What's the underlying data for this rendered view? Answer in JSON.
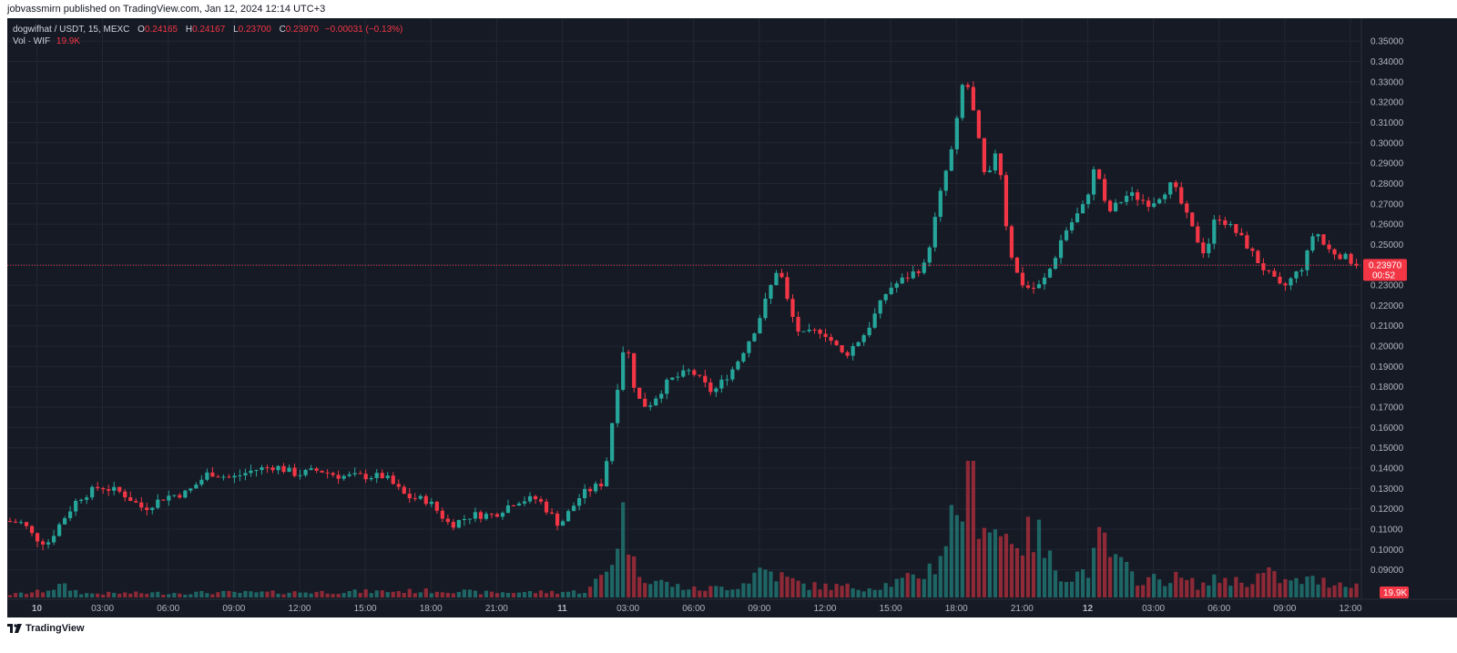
{
  "header": {
    "published_text": "jobvassmirn published on TradingView.com, Jan 12, 2024 12:14 UTC+3"
  },
  "legend": {
    "symbol": "dogwifhat / USDT, 15, MEXC",
    "o_label": "O",
    "o_value": "0.24165",
    "h_label": "H",
    "h_value": "0.24167",
    "l_label": "L",
    "l_value": "0.23700",
    "c_label": "C",
    "c_value": "0.23970",
    "change": "−0.00031 (−0.13%)",
    "vol_label": "Vol · WIF",
    "vol_value": "19.9K"
  },
  "footer": {
    "brand": "TradingView",
    "logo_icon": "tradingview-logo-icon"
  },
  "colors": {
    "up": "#26a69a",
    "down": "#f23645",
    "background": "#161a25",
    "grid": "#232734",
    "text": "#b2b5be"
  },
  "chart_data": {
    "type": "candlestick",
    "title": "",
    "symbol": "dogwifhat / USDT",
    "interval": "15",
    "exchange": "MEXC",
    "last_price": "0.23970",
    "countdown": "00:52",
    "volume_last": "19.9K",
    "ylim": [
      0.08,
      0.355
    ],
    "y_ticks": [
      "0.35000",
      "0.34000",
      "0.33000",
      "0.32000",
      "0.31000",
      "0.30000",
      "0.29000",
      "0.28000",
      "0.27000",
      "0.26000",
      "0.25000",
      "0.24000",
      "0.23000",
      "0.22000",
      "0.21000",
      "0.20000",
      "0.19000",
      "0.18000",
      "0.17000",
      "0.16000",
      "0.15000",
      "0.14000",
      "0.13000",
      "0.12000",
      "0.11000",
      "0.10000",
      "0.09000"
    ],
    "x_ticks": [
      {
        "label": "10",
        "hour": 0,
        "bold": true
      },
      {
        "label": "03:00",
        "hour": 3
      },
      {
        "label": "06:00",
        "hour": 6
      },
      {
        "label": "09:00",
        "hour": 9
      },
      {
        "label": "12:00",
        "hour": 12
      },
      {
        "label": "15:00",
        "hour": 15
      },
      {
        "label": "18:00",
        "hour": 18
      },
      {
        "label": "21:00",
        "hour": 21
      },
      {
        "label": "11",
        "hour": 24,
        "bold": true
      },
      {
        "label": "03:00",
        "hour": 27
      },
      {
        "label": "06:00",
        "hour": 30
      },
      {
        "label": "09:00",
        "hour": 33
      },
      {
        "label": "12:00",
        "hour": 36
      },
      {
        "label": "15:00",
        "hour": 39
      },
      {
        "label": "18:00",
        "hour": 42
      },
      {
        "label": "21:00",
        "hour": 45
      },
      {
        "label": "12",
        "hour": 48,
        "bold": true
      },
      {
        "label": "03:00",
        "hour": 51
      },
      {
        "label": "06:00",
        "hour": 54
      },
      {
        "label": "09:00",
        "hour": 57
      },
      {
        "label": "12:00",
        "hour": 60
      }
    ],
    "x_range_hours": [
      -1.35,
      60.5
    ],
    "price_anchors": [
      [
        -1.35,
        0.114
      ],
      [
        -0.5,
        0.113
      ],
      [
        0,
        0.106
      ],
      [
        0.6,
        0.103
      ],
      [
        1.2,
        0.113
      ],
      [
        2,
        0.125
      ],
      [
        3,
        0.131
      ],
      [
        4,
        0.128
      ],
      [
        5,
        0.12
      ],
      [
        6,
        0.126
      ],
      [
        7,
        0.128
      ],
      [
        8,
        0.138
      ],
      [
        9,
        0.135
      ],
      [
        10,
        0.139
      ],
      [
        11,
        0.141
      ],
      [
        12,
        0.137
      ],
      [
        13,
        0.139
      ],
      [
        14,
        0.136
      ],
      [
        15,
        0.136
      ],
      [
        16,
        0.136
      ],
      [
        17,
        0.126
      ],
      [
        18,
        0.124
      ],
      [
        19,
        0.112
      ],
      [
        20,
        0.117
      ],
      [
        21,
        0.117
      ],
      [
        22,
        0.124
      ],
      [
        23,
        0.125
      ],
      [
        24,
        0.112
      ],
      [
        25,
        0.127
      ],
      [
        26,
        0.133
      ],
      [
        26.5,
        0.17
      ],
      [
        27,
        0.205
      ],
      [
        27.5,
        0.175
      ],
      [
        28,
        0.17
      ],
      [
        29,
        0.183
      ],
      [
        30,
        0.188
      ],
      [
        31,
        0.177
      ],
      [
        32,
        0.19
      ],
      [
        33,
        0.21
      ],
      [
        34,
        0.24
      ],
      [
        34.5,
        0.218
      ],
      [
        35,
        0.205
      ],
      [
        36,
        0.208
      ],
      [
        37,
        0.195
      ],
      [
        38,
        0.207
      ],
      [
        39,
        0.228
      ],
      [
        40,
        0.235
      ],
      [
        40.7,
        0.24
      ],
      [
        41,
        0.255
      ],
      [
        41.5,
        0.28
      ],
      [
        42,
        0.3
      ],
      [
        42.5,
        0.335
      ],
      [
        43,
        0.31
      ],
      [
        43.5,
        0.278
      ],
      [
        44,
        0.3
      ],
      [
        44.5,
        0.25
      ],
      [
        45,
        0.232
      ],
      [
        45.5,
        0.228
      ],
      [
        46,
        0.23
      ],
      [
        46.5,
        0.24
      ],
      [
        47,
        0.255
      ],
      [
        48,
        0.27
      ],
      [
        48.5,
        0.29
      ],
      [
        49,
        0.265
      ],
      [
        50,
        0.275
      ],
      [
        51,
        0.27
      ],
      [
        52,
        0.28
      ],
      [
        53,
        0.255
      ],
      [
        53.5,
        0.245
      ],
      [
        54,
        0.265
      ],
      [
        55,
        0.255
      ],
      [
        55.5,
        0.248
      ],
      [
        56,
        0.24
      ],
      [
        57,
        0.228
      ],
      [
        58,
        0.24
      ],
      [
        58.5,
        0.258
      ],
      [
        59,
        0.248
      ],
      [
        60,
        0.243
      ],
      [
        60.5,
        0.2397
      ]
    ],
    "volume_anchors": [
      [
        -1.35,
        3
      ],
      [
        0,
        6
      ],
      [
        1,
        12
      ],
      [
        2,
        4
      ],
      [
        8,
        5
      ],
      [
        10,
        5
      ],
      [
        19,
        7
      ],
      [
        20,
        5
      ],
      [
        25,
        6
      ],
      [
        26,
        30
      ],
      [
        26.8,
        95
      ],
      [
        27,
        35
      ],
      [
        28,
        18
      ],
      [
        29,
        12
      ],
      [
        30,
        8
      ],
      [
        32,
        12
      ],
      [
        33,
        30
      ],
      [
        34,
        20
      ],
      [
        35,
        12
      ],
      [
        38,
        10
      ],
      [
        40,
        20
      ],
      [
        41,
        35
      ],
      [
        41.5,
        70
      ],
      [
        42,
        95
      ],
      [
        42.5,
        130
      ],
      [
        43,
        90
      ],
      [
        44,
        60
      ],
      [
        44.5,
        70
      ],
      [
        45,
        55
      ],
      [
        45.5,
        70
      ],
      [
        46,
        40
      ],
      [
        47,
        20
      ],
      [
        48,
        30
      ],
      [
        48.5,
        60
      ],
      [
        49,
        40
      ],
      [
        50,
        20
      ],
      [
        51,
        18
      ],
      [
        52,
        20
      ],
      [
        53,
        12
      ],
      [
        54,
        20
      ],
      [
        55,
        15
      ],
      [
        56,
        25
      ],
      [
        57,
        15
      ],
      [
        58,
        18
      ],
      [
        59,
        15
      ],
      [
        60,
        15
      ],
      [
        60.5,
        12
      ]
    ],
    "volume_max": 140,
    "up_color": "#26a69a",
    "down_color": "#f23645",
    "current_price_line": 0.2397,
    "grid": true
  }
}
